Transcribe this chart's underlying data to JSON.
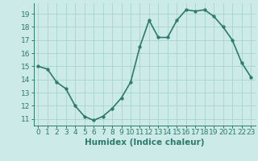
{
  "x": [
    0,
    1,
    2,
    3,
    4,
    5,
    6,
    7,
    8,
    9,
    10,
    11,
    12,
    13,
    14,
    15,
    16,
    17,
    18,
    19,
    20,
    21,
    22,
    23
  ],
  "y": [
    15.0,
    14.8,
    13.8,
    13.3,
    12.0,
    11.2,
    10.9,
    11.2,
    11.8,
    12.6,
    13.8,
    16.5,
    18.5,
    17.2,
    17.2,
    18.5,
    19.3,
    19.2,
    19.3,
    18.8,
    18.0,
    17.0,
    15.3,
    14.2
  ],
  "line_color": "#2d7a6e",
  "marker": "o",
  "markersize": 2.5,
  "linewidth": 1.2,
  "bg_color": "#cceae7",
  "grid_color": "#aad4ce",
  "xlabel": "Humidex (Indice chaleur)",
  "xlim": [
    -0.5,
    23.5
  ],
  "ylim": [
    10.5,
    19.8
  ],
  "yticks": [
    11,
    12,
    13,
    14,
    15,
    16,
    17,
    18,
    19
  ],
  "xticks": [
    0,
    1,
    2,
    3,
    4,
    5,
    6,
    7,
    8,
    9,
    10,
    11,
    12,
    13,
    14,
    15,
    16,
    17,
    18,
    19,
    20,
    21,
    22,
    23
  ],
  "tick_fontsize": 6.5,
  "xlabel_fontsize": 7.5
}
